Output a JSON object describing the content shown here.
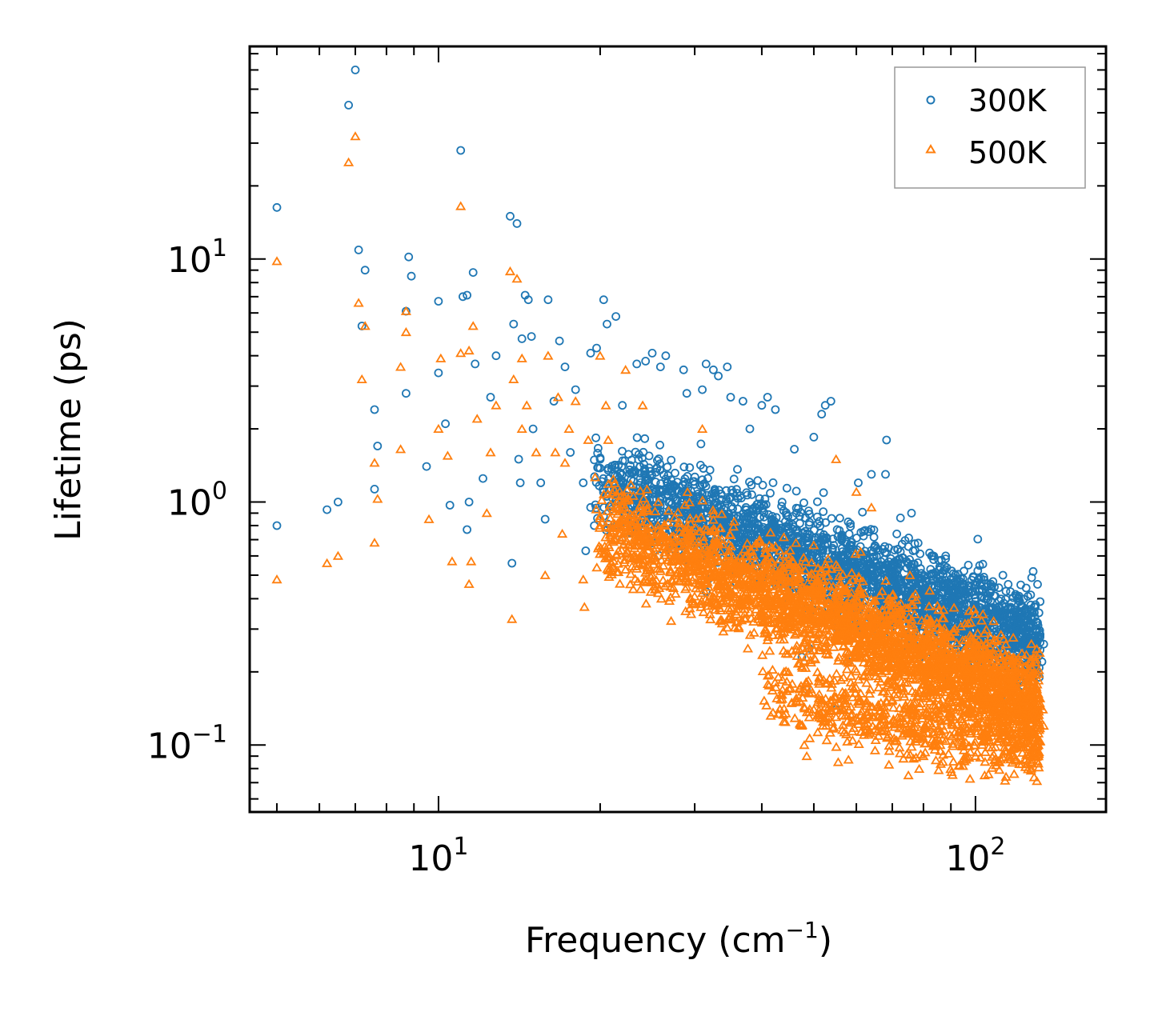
{
  "chart_data": {
    "type": "scatter",
    "title": "",
    "xlabel": "Frequency (cm",
    "xlabel_sup": "−1",
    "xlabel_end": ")",
    "ylabel": "Lifetime (ps)",
    "xscale": "log",
    "yscale": "log",
    "xlim": [
      4.45,
      175
    ],
    "ylim": [
      0.053,
      75
    ],
    "x_ticks": [
      {
        "value": 10,
        "base": "10",
        "exp": "1"
      },
      {
        "value": 100,
        "base": "10",
        "exp": "2"
      }
    ],
    "y_ticks": [
      {
        "value": 0.1,
        "base": "10",
        "exp": "−1"
      },
      {
        "value": 1,
        "base": "10",
        "exp": "0"
      },
      {
        "value": 10,
        "base": "10",
        "exp": "1"
      }
    ],
    "legend_position": "top-right",
    "series": [
      {
        "name": "300K",
        "marker": "circle",
        "color": "#1f77b4",
        "points": [
          [
            5.0,
            16.3
          ],
          [
            5.0,
            0.8
          ],
          [
            6.2,
            0.93
          ],
          [
            6.5,
            1.0
          ],
          [
            7.0,
            60
          ],
          [
            6.8,
            43
          ],
          [
            7.1,
            10.9
          ],
          [
            7.2,
            5.3
          ],
          [
            7.3,
            9.0
          ],
          [
            7.6,
            2.4
          ],
          [
            7.7,
            1.7
          ],
          [
            7.6,
            1.13
          ],
          [
            8.7,
            6.1
          ],
          [
            8.8,
            10.2
          ],
          [
            8.9,
            8.5
          ],
          [
            8.7,
            2.8
          ],
          [
            9.5,
            1.4
          ],
          [
            10.0,
            6.7
          ],
          [
            10.0,
            3.4
          ],
          [
            10.3,
            2.1
          ],
          [
            10.5,
            0.97
          ],
          [
            11.0,
            28
          ],
          [
            11.1,
            7.0
          ],
          [
            11.3,
            7.1
          ],
          [
            11.3,
            0.77
          ],
          [
            11.6,
            8.8
          ],
          [
            11.7,
            3.7
          ],
          [
            11.4,
            1.0
          ],
          [
            12.1,
            1.25
          ],
          [
            12.5,
            2.7
          ],
          [
            12.8,
            4.0
          ],
          [
            13.6,
            15
          ],
          [
            14.0,
            14
          ],
          [
            13.8,
            5.4
          ],
          [
            14.5,
            7.1
          ],
          [
            14.3,
            4.7
          ],
          [
            14.7,
            6.8
          ],
          [
            14.9,
            4.8
          ],
          [
            13.7,
            0.56
          ],
          [
            14.1,
            1.5
          ],
          [
            14.2,
            1.2
          ],
          [
            15.0,
            2.0
          ],
          [
            15.5,
            1.2
          ],
          [
            15.8,
            0.85
          ],
          [
            16.0,
            6.8
          ],
          [
            16.4,
            2.6
          ],
          [
            16.8,
            4.6
          ],
          [
            17.2,
            3.6
          ],
          [
            17.6,
            1.6
          ],
          [
            18.0,
            2.9
          ],
          [
            18.6,
            1.2
          ],
          [
            19.2,
            4.1
          ],
          [
            19.7,
            4.3
          ],
          [
            20.3,
            6.8
          ],
          [
            20.6,
            5.4
          ],
          [
            21.4,
            5.8
          ],
          [
            18.8,
            0.63
          ],
          [
            19.5,
            0.8
          ],
          [
            19.2,
            0.95
          ],
          [
            22.0,
            2.5
          ],
          [
            23.4,
            3.7
          ],
          [
            24.3,
            3.8
          ],
          [
            25.0,
            4.1
          ],
          [
            25.9,
            3.6
          ],
          [
            26.5,
            4.0
          ],
          [
            28.6,
            3.5
          ],
          [
            31.5,
            3.7
          ],
          [
            32.5,
            3.5
          ],
          [
            33.2,
            3.3
          ],
          [
            34.5,
            3.6
          ],
          [
            36.9,
            2.6
          ],
          [
            40.0,
            2.5
          ],
          [
            41.0,
            2.7
          ],
          [
            42.4,
            2.4
          ],
          [
            51.7,
            2.3
          ],
          [
            52.5,
            2.5
          ],
          [
            53.8,
            2.6
          ],
          [
            50.0,
            1.85
          ],
          [
            68.3,
            1.8
          ],
          [
            46.0,
            1.65
          ],
          [
            31.0,
            2.9
          ],
          [
            29.0,
            2.8
          ],
          [
            35.0,
            2.7
          ],
          [
            38.0,
            2.0
          ],
          [
            47.5,
            0.23
          ],
          [
            48.4,
            0.17
          ],
          [
            49.0,
            0.25
          ],
          [
            55.0,
            0.14
          ],
          [
            58.0,
            0.22
          ],
          [
            131.3,
            0.35
          ],
          [
            134.0,
            0.26
          ],
          [
            133.0,
            0.22
          ],
          [
            131.5,
            0.19
          ],
          [
            127.5,
            0.16
          ],
          [
            112.5,
            0.5
          ],
          [
            107.0,
            0.45
          ],
          [
            97.0,
            0.55
          ],
          [
            100.0,
            0.39
          ],
          [
            88.0,
            0.6
          ],
          [
            72.5,
            0.86
          ],
          [
            76.0,
            0.9
          ],
          [
            68.0,
            1.3
          ],
          [
            64.0,
            1.3
          ],
          [
            60.5,
            1.2
          ]
        ]
      },
      {
        "name": "500K",
        "marker": "triangle",
        "color": "#ff7f0e",
        "points": [
          [
            5.0,
            9.8
          ],
          [
            5.0,
            0.48
          ],
          [
            6.2,
            0.56
          ],
          [
            6.5,
            0.6
          ],
          [
            7.0,
            32
          ],
          [
            6.8,
            25
          ],
          [
            7.1,
            6.6
          ],
          [
            7.3,
            5.3
          ],
          [
            7.2,
            3.2
          ],
          [
            7.6,
            1.45
          ],
          [
            7.7,
            1.03
          ],
          [
            7.6,
            0.68
          ],
          [
            8.5,
            3.6
          ],
          [
            8.7,
            6.1
          ],
          [
            8.7,
            5.0
          ],
          [
            8.5,
            1.65
          ],
          [
            9.6,
            0.85
          ],
          [
            10.0,
            2.0
          ],
          [
            10.1,
            3.9
          ],
          [
            10.4,
            1.55
          ],
          [
            10.6,
            0.57
          ],
          [
            11.0,
            16.5
          ],
          [
            11.0,
            4.1
          ],
          [
            11.4,
            4.2
          ],
          [
            11.6,
            5.3
          ],
          [
            11.5,
            0.57
          ],
          [
            11.4,
            0.46
          ],
          [
            11.8,
            2.2
          ],
          [
            12.3,
            0.9
          ],
          [
            12.5,
            1.6
          ],
          [
            12.8,
            2.5
          ],
          [
            13.6,
            8.9
          ],
          [
            13.8,
            3.2
          ],
          [
            13.7,
            0.33
          ],
          [
            14.0,
            8.3
          ],
          [
            14.3,
            3.9
          ],
          [
            14.6,
            2.5
          ],
          [
            14.3,
            2.0
          ],
          [
            15.2,
            1.6
          ],
          [
            15.8,
            0.5
          ],
          [
            16.0,
            4.0
          ],
          [
            16.5,
            1.6
          ],
          [
            16.7,
            2.7
          ],
          [
            17.0,
            0.74
          ],
          [
            17.2,
            1.45
          ],
          [
            17.5,
            2.0
          ],
          [
            18.0,
            2.6
          ],
          [
            18.6,
            0.48
          ],
          [
            18.7,
            0.37
          ],
          [
            19.0,
            1.8
          ],
          [
            20.0,
            4.0
          ],
          [
            20.5,
            2.5
          ],
          [
            20.7,
            1.8
          ],
          [
            22.3,
            3.5
          ],
          [
            24.0,
            2.5
          ],
          [
            26.0,
            0.4
          ],
          [
            31.0,
            2.0
          ],
          [
            47.5,
            0.12
          ],
          [
            48.0,
            0.1
          ],
          [
            48.5,
            0.09
          ],
          [
            49.0,
            0.13
          ],
          [
            55.5,
            0.085
          ],
          [
            58.0,
            0.087
          ],
          [
            62.0,
            0.11
          ],
          [
            65.0,
            0.095
          ],
          [
            69.0,
            0.083
          ],
          [
            75.0,
            0.075
          ],
          [
            80.0,
            0.09
          ],
          [
            86.0,
            0.1
          ],
          [
            100.0,
            0.09
          ],
          [
            104.0,
            0.075
          ],
          [
            114.0,
            0.074
          ],
          [
            118.0,
            0.076
          ],
          [
            127.0,
            0.08
          ],
          [
            131.0,
            0.1
          ],
          [
            134.0,
            0.12
          ],
          [
            133.5,
            0.14
          ],
          [
            55.0,
            1.5
          ],
          [
            60.0,
            1.1
          ],
          [
            64.0,
            0.95
          ],
          [
            43.0,
            0.4
          ],
          [
            39.5,
            0.33
          ],
          [
            41.0,
            0.27
          ],
          [
            44.0,
            0.2
          ],
          [
            46.5,
            0.15
          ],
          [
            45.0,
            0.17
          ],
          [
            50.0,
            0.14
          ],
          [
            52.0,
            0.12
          ],
          [
            53.0,
            0.18
          ],
          [
            57.0,
            0.16
          ],
          [
            70.0,
            0.22
          ],
          [
            75.5,
            0.5
          ],
          [
            90.0,
            0.25
          ],
          [
            95.0,
            0.2
          ],
          [
            110.0,
            0.15
          ],
          [
            120.0,
            0.14
          ]
        ]
      }
    ],
    "dense_bands": [
      {
        "series": 0,
        "count": 2600,
        "x": [
          19.5,
          132
        ],
        "y_at_log_x": "center",
        "center_start": 1.25,
        "center_end": 0.27,
        "spread": 0.16
      },
      {
        "series": 1,
        "count": 3000,
        "x": [
          19.5,
          132
        ],
        "center_start": 0.82,
        "center_end": 0.15,
        "spread": 0.17
      },
      {
        "series": 1,
        "count": 650,
        "x": [
          40,
          132
        ],
        "center_start": 0.16,
        "center_end": 0.1,
        "spread": 0.12
      }
    ]
  }
}
